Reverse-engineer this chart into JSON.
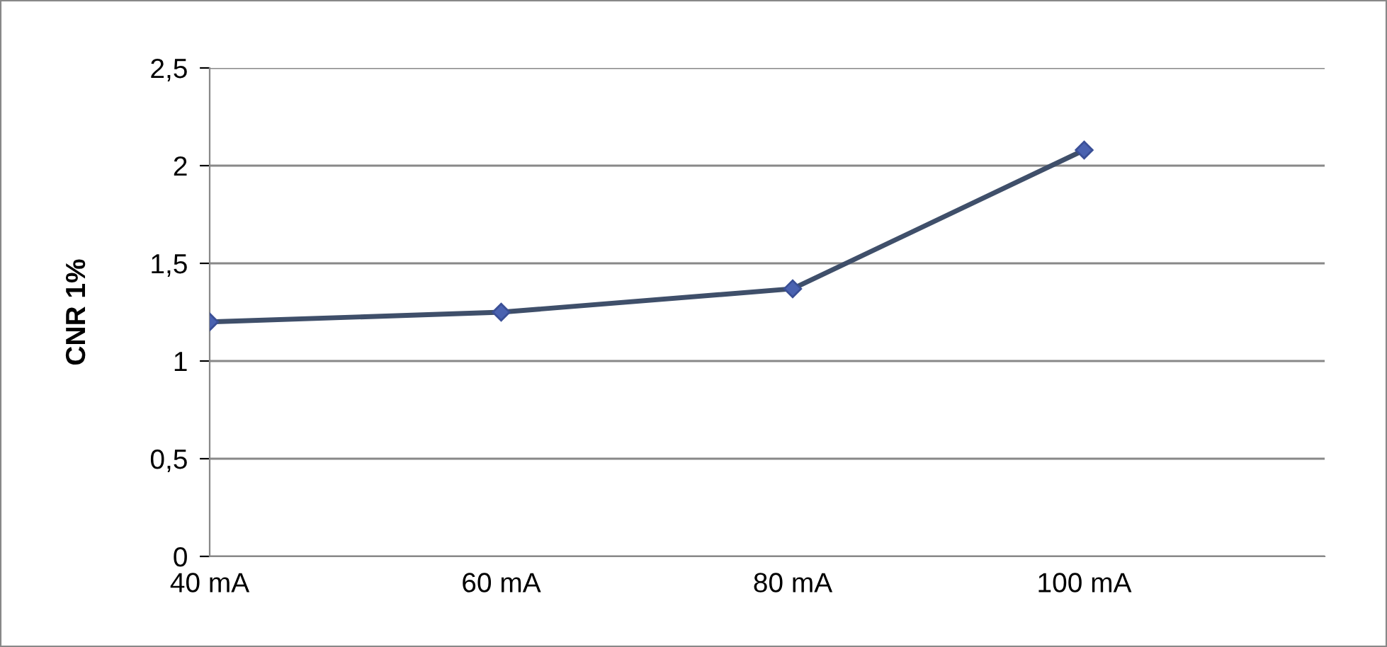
{
  "chart_data": {
    "type": "line",
    "ylabel": "CNR 1%",
    "categories": [
      "40 mA",
      "60 mA",
      "80 mA",
      "100 mA"
    ],
    "series": [
      {
        "color": "#3f4f6a",
        "values": [
          1.2,
          1.25,
          1.37,
          2.08
        ]
      }
    ],
    "ylim": [
      0,
      2.5
    ],
    "yticks": [
      0,
      {
        "value": 0.5,
        "label": "0,5"
      },
      1,
      {
        "value": 1.5,
        "label": "1,5"
      },
      2,
      {
        "value": 2.5,
        "label": "2,5"
      }
    ],
    "grid": "y",
    "marker": "diamond",
    "line_style": "solid"
  }
}
